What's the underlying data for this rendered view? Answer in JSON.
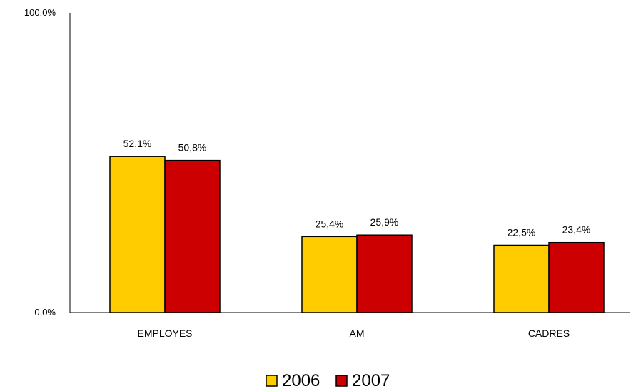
{
  "chart_data": {
    "type": "bar",
    "categories": [
      "EMPLOYES",
      "AM",
      "CADRES"
    ],
    "series": [
      {
        "name": "2006",
        "values": [
          52.1,
          25.4,
          22.5
        ],
        "labels": [
          "52,1%",
          "25,4%",
          "22,5%"
        ],
        "color": "#FFCC00"
      },
      {
        "name": "2007",
        "values": [
          50.8,
          25.9,
          23.4
        ],
        "labels": [
          "50,8%",
          "25,9%",
          "23,4%"
        ],
        "color": "#CC0000"
      }
    ],
    "ylim": [
      0,
      100
    ],
    "yticks": [
      {
        "value": 0,
        "label": "0,0%"
      },
      {
        "value": 100,
        "label": "100,0%"
      }
    ],
    "grid": false,
    "legend_position": "bottom",
    "bar_stroke": "#000000"
  }
}
